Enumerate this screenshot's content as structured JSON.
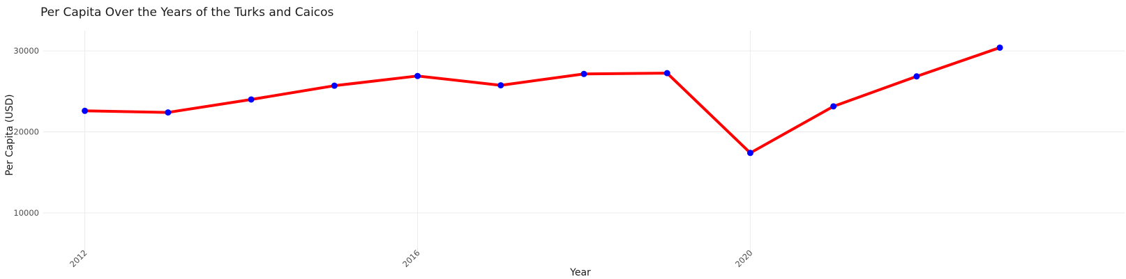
{
  "chart_data": {
    "type": "line",
    "title": "Per Capita Over the Years of the Turks and Caicos",
    "xlabel": "Year",
    "ylabel": "Per Capita (USD)",
    "x": [
      2012,
      2013,
      2014,
      2015,
      2016,
      2017,
      2018,
      2019,
      2020,
      2021,
      2022,
      2023
    ],
    "series": [
      {
        "values": [
          22600,
          22400,
          24000,
          25700,
          26900,
          25750,
          27150,
          27250,
          17400,
          23150,
          26850,
          30400
        ],
        "line_color": "#ff0000",
        "marker_color": "#0000ff"
      }
    ],
    "x_ticks": [
      "2012",
      "2016",
      "2020"
    ],
    "y_ticks": [
      "10000",
      "20000",
      "30000"
    ],
    "xlim": [
      2011.5,
      2024.5
    ],
    "ylim": [
      4500,
      32500
    ],
    "grid": true,
    "legend": "none"
  }
}
